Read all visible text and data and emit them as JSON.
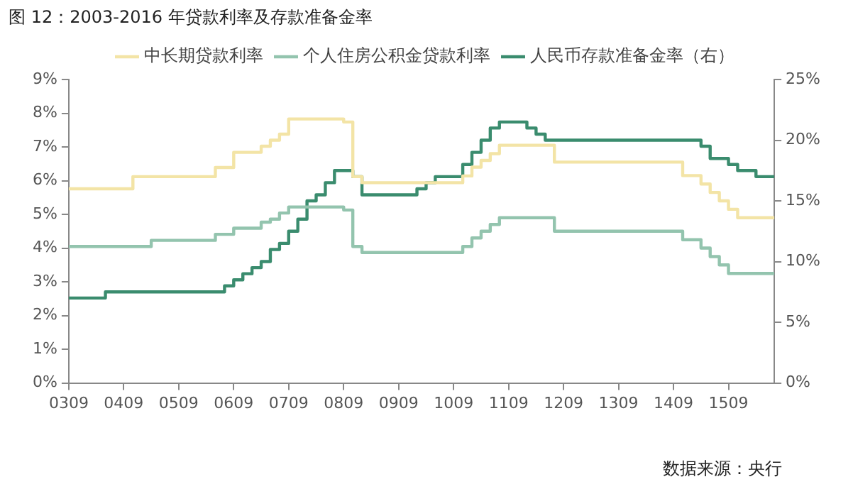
{
  "chart_data": {
    "type": "step",
    "title": "图 12：2003-2016 年贷款利率及存款准备金率",
    "categories": [
      "0309",
      null,
      null,
      null,
      null,
      null,
      "0409",
      null,
      null,
      null,
      null,
      null,
      "0509",
      null,
      null,
      null,
      null,
      null,
      "0609",
      null,
      null,
      null,
      null,
      null,
      "0709",
      null,
      null,
      null,
      null,
      null,
      "0809",
      null,
      null,
      null,
      null,
      null,
      "0909",
      null,
      null,
      null,
      null,
      null,
      "1009",
      null,
      null,
      null,
      null,
      null,
      "1109",
      null,
      null,
      null,
      null,
      null,
      "1209",
      null,
      null,
      null,
      null,
      null,
      "1309",
      null,
      null,
      null,
      null,
      null,
      "1409",
      null,
      null,
      null,
      null,
      null,
      "1509",
      null,
      null,
      null,
      null,
      null
    ],
    "series": [
      {
        "name": "中长期贷款利率",
        "color": "#f3e4a6",
        "values": [
          5.76,
          5.76,
          5.76,
          5.76,
          5.76,
          5.76,
          5.76,
          6.12,
          6.12,
          6.12,
          6.12,
          6.12,
          6.12,
          6.12,
          6.12,
          6.12,
          6.39,
          6.39,
          6.84,
          6.84,
          6.84,
          7.02,
          7.2,
          7.38,
          7.83,
          7.83,
          7.83,
          7.83,
          7.83,
          7.83,
          7.74,
          6.12,
          5.94,
          5.94,
          5.94,
          5.94,
          5.94,
          5.94,
          5.94,
          5.94,
          5.94,
          5.94,
          5.94,
          6.14,
          6.4,
          6.6,
          6.8,
          7.05,
          7.05,
          7.05,
          7.05,
          7.05,
          7.05,
          6.55,
          6.55,
          6.55,
          6.55,
          6.55,
          6.55,
          6.55,
          6.55,
          6.55,
          6.55,
          6.55,
          6.55,
          6.55,
          6.55,
          6.15,
          6.15,
          5.9,
          5.65,
          5.4,
          5.15,
          4.9,
          4.9,
          4.9,
          4.9,
          4.9
        ]
      },
      {
        "name": "个人住房公积金贷款利率",
        "color": "#93c4ae",
        "values": [
          4.05,
          4.05,
          4.05,
          4.05,
          4.05,
          4.05,
          4.05,
          4.05,
          4.05,
          4.23,
          4.23,
          4.23,
          4.23,
          4.23,
          4.23,
          4.23,
          4.41,
          4.41,
          4.59,
          4.59,
          4.59,
          4.77,
          4.86,
          5.04,
          5.22,
          5.22,
          5.22,
          5.22,
          5.22,
          5.22,
          5.13,
          4.05,
          3.87,
          3.87,
          3.87,
          3.87,
          3.87,
          3.87,
          3.87,
          3.87,
          3.87,
          3.87,
          3.87,
          4.05,
          4.3,
          4.5,
          4.7,
          4.9,
          4.9,
          4.9,
          4.9,
          4.9,
          4.9,
          4.5,
          4.5,
          4.5,
          4.5,
          4.5,
          4.5,
          4.5,
          4.5,
          4.5,
          4.5,
          4.5,
          4.5,
          4.5,
          4.5,
          4.25,
          4.25,
          4.0,
          3.75,
          3.5,
          3.25,
          3.25,
          3.25,
          3.25,
          3.25,
          3.25
        ]
      },
      {
        "name": "人民币存款准备金率（右）",
        "color": "#3a8c6e",
        "axis": "y2",
        "values": [
          7,
          7,
          7,
          7,
          7.5,
          7.5,
          7.5,
          7.5,
          7.5,
          7.5,
          7.5,
          7.5,
          7.5,
          7.5,
          7.5,
          7.5,
          7.5,
          8,
          8.5,
          9,
          9.5,
          10,
          11,
          11.5,
          12.5,
          13.5,
          15,
          15.5,
          16.5,
          17.5,
          17.5,
          17,
          15.5,
          15.5,
          15.5,
          15.5,
          15.5,
          15.5,
          16,
          16.5,
          17,
          17,
          17,
          18,
          19,
          20,
          21,
          21.5,
          21.5,
          21.5,
          21,
          20.5,
          20,
          20,
          20,
          20,
          20,
          20,
          20,
          20,
          20,
          20,
          20,
          20,
          20,
          20,
          20,
          20,
          20,
          19.5,
          18.5,
          18.5,
          18,
          17.5,
          17.5,
          17,
          17,
          17
        ]
      }
    ],
    "ylim": [
      0,
      9
    ],
    "yticks": [
      {
        "value": 0,
        "label": "0%"
      },
      {
        "value": 1,
        "label": "1%"
      },
      {
        "value": 2,
        "label": "2%"
      },
      {
        "value": 3,
        "label": "3%"
      },
      {
        "value": 4,
        "label": "4%"
      },
      {
        "value": 5,
        "label": "5%"
      },
      {
        "value": 6,
        "label": "6%"
      },
      {
        "value": 7,
        "label": "7%"
      },
      {
        "value": 8,
        "label": "8%"
      },
      {
        "value": 9,
        "label": "9%"
      }
    ],
    "y2lim": [
      0,
      25
    ],
    "y2ticks": [
      {
        "value": 0,
        "label": "0%"
      },
      {
        "value": 5,
        "label": "5%"
      },
      {
        "value": 10,
        "label": "10%"
      },
      {
        "value": 15,
        "label": "15%"
      },
      {
        "value": 20,
        "label": "20%"
      },
      {
        "value": 25,
        "label": "25%"
      }
    ],
    "legend": "top",
    "grid": false,
    "marker": "none",
    "line_style": "solid",
    "annotations": [
      "数据来源：央行"
    ]
  }
}
